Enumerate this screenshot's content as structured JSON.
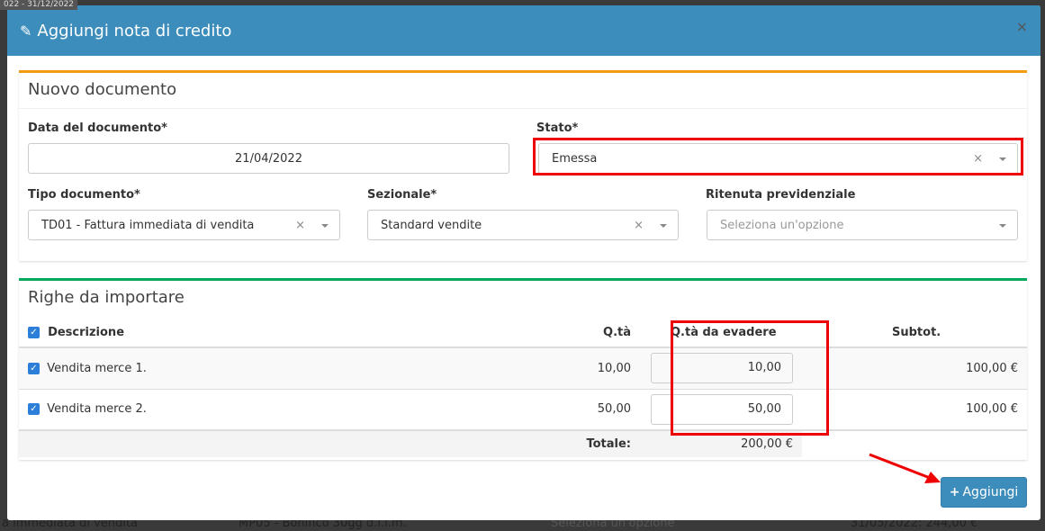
{
  "background": {
    "top_text": "022 - 31/12/2022",
    "bottom": [
      "a immediata di vendita",
      "MP05 - Bonifico 30gg d.f.f.m.",
      "Seleziona un'opzione",
      "31/05/2022: 244,00 €"
    ]
  },
  "modal": {
    "title": "Aggiungi nota di credito",
    "close": "×",
    "icon": "pencil-icon"
  },
  "nuovo": {
    "title": "Nuovo documento",
    "data_label": "Data del documento*",
    "data_value": "21/04/2022",
    "stato_label": "Stato*",
    "stato_value": "Emessa",
    "tipo_label": "Tipo documento*",
    "tipo_value": "TD01 - Fattura immediata di vendita",
    "sezionale_label": "Sezionale*",
    "sezionale_value": "Standard vendite",
    "ritenuta_label": "Ritenuta previdenziale",
    "ritenuta_placeholder": "Seleziona un'opzione",
    "clear": "×"
  },
  "righe": {
    "title": "Righe da importare",
    "columns": [
      "Descrizione",
      "Q.tà",
      "Q.tà da evadere",
      "Subtot."
    ],
    "rows": [
      {
        "descrizione": "Vendita merce 1.",
        "qta": "10,00",
        "evadere": "10,00",
        "subtot": "100,00 €",
        "checked": true
      },
      {
        "descrizione": "Vendita merce 2.",
        "qta": "50,00",
        "evadere": "50,00",
        "subtot": "100,00 €",
        "checked": true
      }
    ],
    "totale_label": "Totale:",
    "totale_value": "200,00 €"
  },
  "actions": {
    "add_label": "Aggiungi",
    "add_icon": "plus-icon"
  },
  "colors": {
    "header": "#3c8dbc",
    "highlight": "#ee0000",
    "box1_border": "#f39c12",
    "box2_border": "#00a65a"
  }
}
